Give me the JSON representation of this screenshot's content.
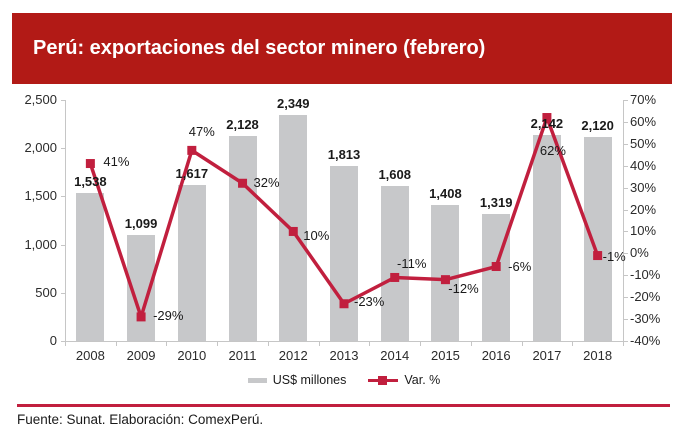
{
  "header": {
    "title": "Perú: exportaciones del sector minero (febrero)"
  },
  "chart_data": {
    "type": "bar+line",
    "title": "Perú: exportaciones del sector minero (febrero)",
    "categories": [
      "2008",
      "2009",
      "2010",
      "2011",
      "2012",
      "2013",
      "2014",
      "2015",
      "2016",
      "2017",
      "2018"
    ],
    "series": [
      {
        "name": "US$ millones",
        "type": "bar",
        "color": "#c7c8ca",
        "values": [
          1538,
          1099,
          1617,
          2128,
          2349,
          1813,
          1608,
          1408,
          1319,
          2142,
          2120
        ],
        "labels": [
          "1,538",
          "1,099",
          "1,617",
          "2,128",
          "2,349",
          "1,813",
          "1,608",
          "1,408",
          "1,319",
          "2,142",
          "2,120"
        ]
      },
      {
        "name": "Var. %",
        "type": "line",
        "color": "#c11f3e",
        "values": [
          41,
          -29,
          47,
          32,
          10,
          -23,
          -11,
          -12,
          -6,
          62,
          -1
        ],
        "labels": [
          "41%",
          "-29%",
          "47%",
          "32%",
          "10%",
          "-23%",
          "-11%",
          "-12%",
          "-6%",
          "62%",
          "-1%"
        ],
        "label_placements": [
          {
            "anchor": "start",
            "dx": 13,
            "dy": -2
          },
          {
            "anchor": "start",
            "dx": 12,
            "dy": -1
          },
          {
            "anchor": "middle",
            "dx": 10,
            "dy": -18
          },
          {
            "anchor": "start",
            "dx": 11,
            "dy": 0
          },
          {
            "anchor": "start",
            "dx": 10,
            "dy": 5
          },
          {
            "anchor": "start",
            "dx": 10,
            "dy": -2
          },
          {
            "anchor": "middle",
            "dx": 17,
            "dy": -13
          },
          {
            "anchor": "middle",
            "dx": 18,
            "dy": 9
          },
          {
            "anchor": "start",
            "dx": 12,
            "dy": 0
          },
          {
            "anchor": "middle",
            "dx": 6,
            "dy": 33
          },
          {
            "anchor": "start",
            "dx": 5,
            "dy": 1
          }
        ]
      }
    ],
    "left_axis": {
      "min": 0,
      "max": 2500,
      "tick_labels": [
        "2,500",
        "2,000",
        "1,500",
        "1,000",
        "500",
        "0"
      ]
    },
    "right_axis": {
      "min": -40,
      "max": 70,
      "tick_labels": [
        "70%",
        "60%",
        "50%",
        "40%",
        "30%",
        "20%",
        "10%",
        "0%",
        "-10%",
        "-20%",
        "-30%",
        "-40%"
      ]
    },
    "grid": false,
    "legend_position": "bottom-center"
  },
  "legend": {
    "items": [
      {
        "label": "US$ millones",
        "swatch": "gray-bar"
      },
      {
        "label": "Var. %",
        "swatch": "red-line-square"
      }
    ]
  },
  "footer": {
    "text": "Fuente: Sunat. Elaboración: ComexPerú."
  },
  "colors": {
    "banner_red": "#b21a16",
    "line_red": "#c11f3e",
    "bar_gray": "#c7c8ca",
    "axis_gray": "#c6c6c6"
  }
}
